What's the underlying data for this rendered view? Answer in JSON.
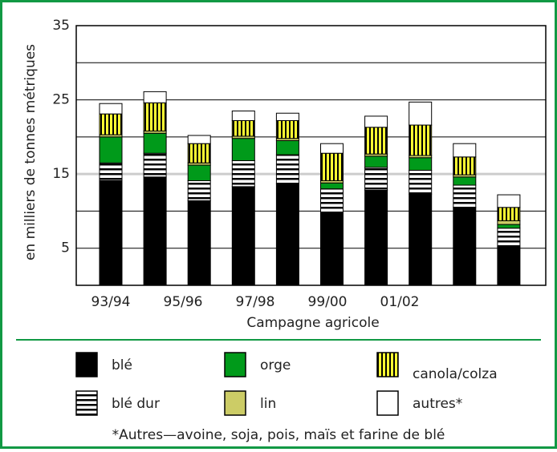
{
  "chart_data": {
    "type": "stacked_bar",
    "ylabel": "en milliers de tonnes métriques",
    "xlabel": "Campagne agricole",
    "footnote": "*Autres—avoine, soja, pois, maïs et farine de blé",
    "categories": [
      "93/94",
      null,
      "95/96",
      null,
      "97/98",
      null,
      "99/00",
      null,
      "01/02",
      null
    ],
    "ylim": [
      0,
      35
    ],
    "yticks": [
      5,
      15,
      25,
      35
    ],
    "ygrid": [
      10,
      20,
      30
    ],
    "grid": true,
    "series": [
      {
        "name": "blé",
        "color": "#000000",
        "values": [
          14.1,
          14.6,
          11.4,
          13.3,
          13.7,
          9.7,
          12.8,
          12.3,
          10.5,
          5.2
        ]
      },
      {
        "name": "blé dur",
        "color": "#ffffff",
        "pattern": "horizontal",
        "values": [
          2.4,
          3.2,
          2.7,
          3.5,
          3.9,
          3.3,
          3.1,
          3.2,
          3.0,
          2.5
        ]
      },
      {
        "name": "orge",
        "color": "#009a1a",
        "values": [
          3.5,
          2.7,
          2.1,
          3.0,
          1.9,
          0.8,
          1.5,
          1.7,
          1.1,
          0.5
        ]
      },
      {
        "name": "lin",
        "color": "#cccc66",
        "values": [
          0.3,
          0.3,
          0.3,
          0.3,
          0.3,
          0.3,
          0.3,
          0.3,
          0.3,
          0.5
        ]
      },
      {
        "name": "canola/colza",
        "color": "#ffff33",
        "pattern": "vertical",
        "values": [
          2.8,
          3.8,
          2.6,
          2.1,
          2.4,
          3.7,
          3.6,
          4.1,
          2.4,
          1.8
        ]
      },
      {
        "name": "autres*",
        "color": "#ffffff",
        "values": [
          1.4,
          1.5,
          1.1,
          1.3,
          1.0,
          1.3,
          1.5,
          3.1,
          1.8,
          1.7
        ]
      }
    ]
  }
}
